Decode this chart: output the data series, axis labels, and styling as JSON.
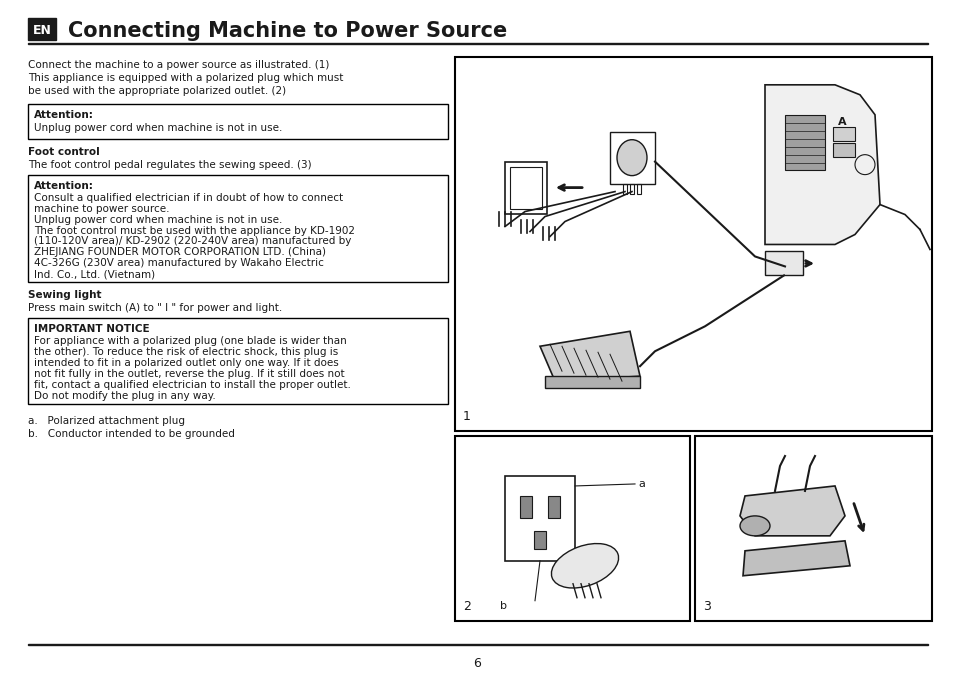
{
  "title": "Connecting Machine to Power Source",
  "en_label": "EN",
  "page_number": "6",
  "bg_color": "#ffffff",
  "text_color": "#1a1a1a",
  "border_color": "#000000",
  "intro_text": "Connect the machine to a power source as illustrated. (1)\nThis appliance is equipped with a polarized plug which must\nbe used with the appropriate polarized outlet. (2)",
  "attention1_title": "Attention:",
  "attention1_body": "Unplug power cord when machine is not in use.",
  "foot_control_title": "Foot control",
  "foot_control_body": "The foot control pedal regulates the sewing speed. (3)",
  "attention2_title": "Attention:",
  "attention2_body": "Consult a qualified electrician if in doubt of how to connect\nmachine to power source.\nUnplug power cord when machine is not in use.\nThe foot control must be used with the appliance by KD-1902\n(110-120V area)/ KD-2902 (220-240V area) manufactured by\nZHEJIANG FOUNDER MOTOR CORPORATION LTD. (China)\n4C-326G (230V area) manufactured by Wakaho Electric\nInd. Co., Ltd. (Vietnam)",
  "sewing_light_title": "Sewing light",
  "sewing_light_body": "Press main switch (A) to \" I \" for power and light.",
  "important_title": "IMPORTANT NOTICE",
  "important_body": "For appliance with a polarized plug (one blade is wider than\nthe other). To reduce the risk of electric shock, this plug is\nintended to fit in a polarized outlet only one way. If it does\nnot fit fully in the outlet, reverse the plug. If it still does not\nfit, contact a qualified electrician to install the proper outlet.\nDo not modify the plug in any way.",
  "footnote_a": "a.   Polarized attachment plug",
  "footnote_b": "b.   Conductor intended to be grounded",
  "fig1_label": "1",
  "fig2_label": "2",
  "fig3_label": "3"
}
